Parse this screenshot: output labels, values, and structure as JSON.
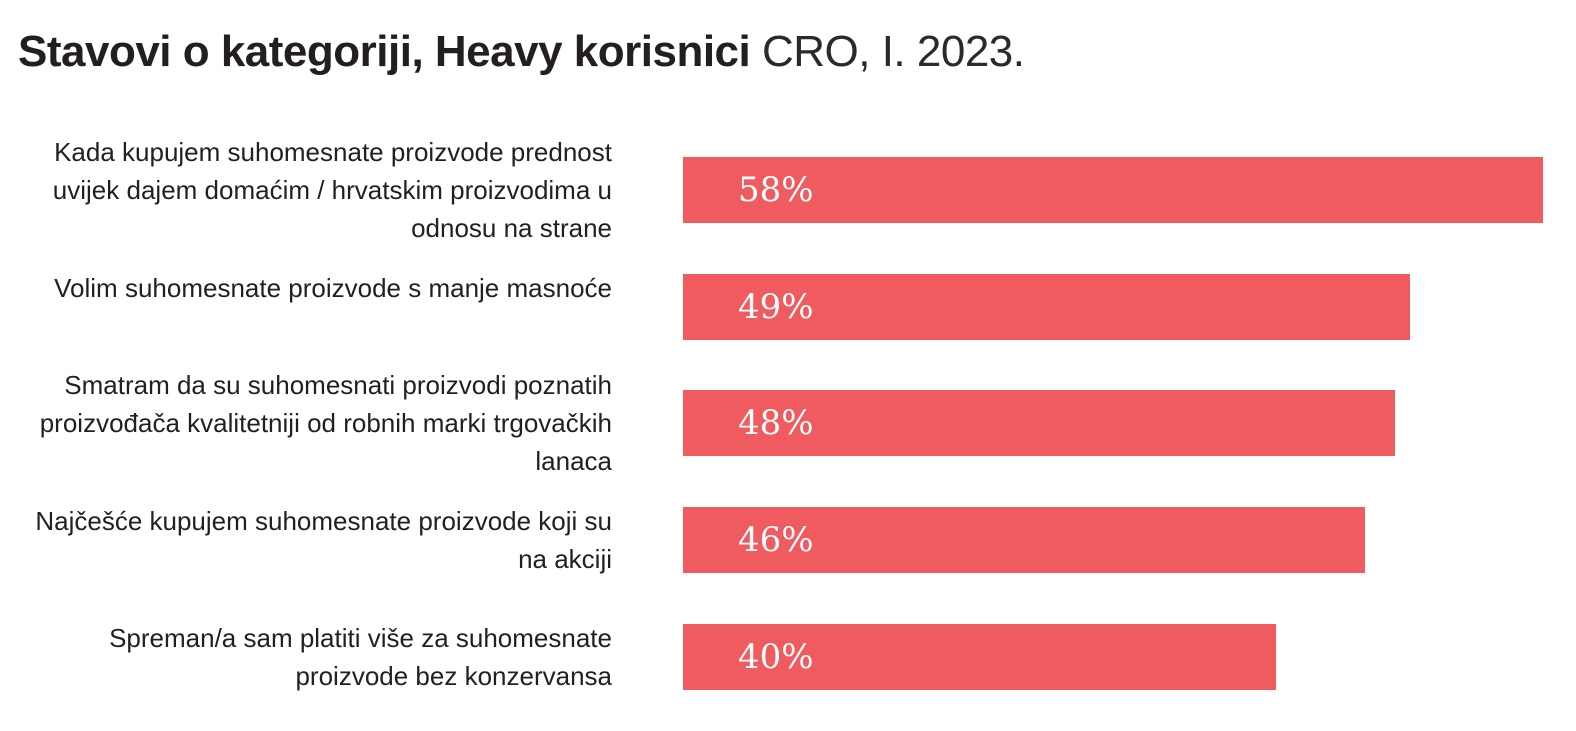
{
  "title": {
    "bold": "Stavovi o kategoriji, Heavy korisnici",
    "light": "CRO, I. 2023."
  },
  "colors": {
    "bar": "#ef5b5f",
    "value_text": "#ffffff",
    "label_text": "#231f20"
  },
  "chart_data": {
    "type": "bar",
    "orientation": "horizontal",
    "title": "Stavovi o kategoriji, Heavy korisnici CRO, I. 2023.",
    "xlim": [
      0,
      58
    ],
    "grid": false,
    "categories": [
      "Kada kupujem suhomesnate proizvode prednost uvijek dajem domaćim / hrvatskim proizvodima u odnosu na strane",
      "Volim suhomesnate proizvode s manje masnoće",
      "Smatram da su suhomesnati proizvodi poznatih proizvođača kvalitetniji od robnih marki trgovačkih lanaca",
      "Najčešće kupujem suhomesnate proizvode koji su na akciji",
      "Spreman/a sam platiti više za suhomesnate proizvode bez konzervansa"
    ],
    "values": [
      58,
      49,
      48,
      46,
      40
    ],
    "value_labels": [
      "58%",
      "49%",
      "48%",
      "46%",
      "40%"
    ]
  }
}
